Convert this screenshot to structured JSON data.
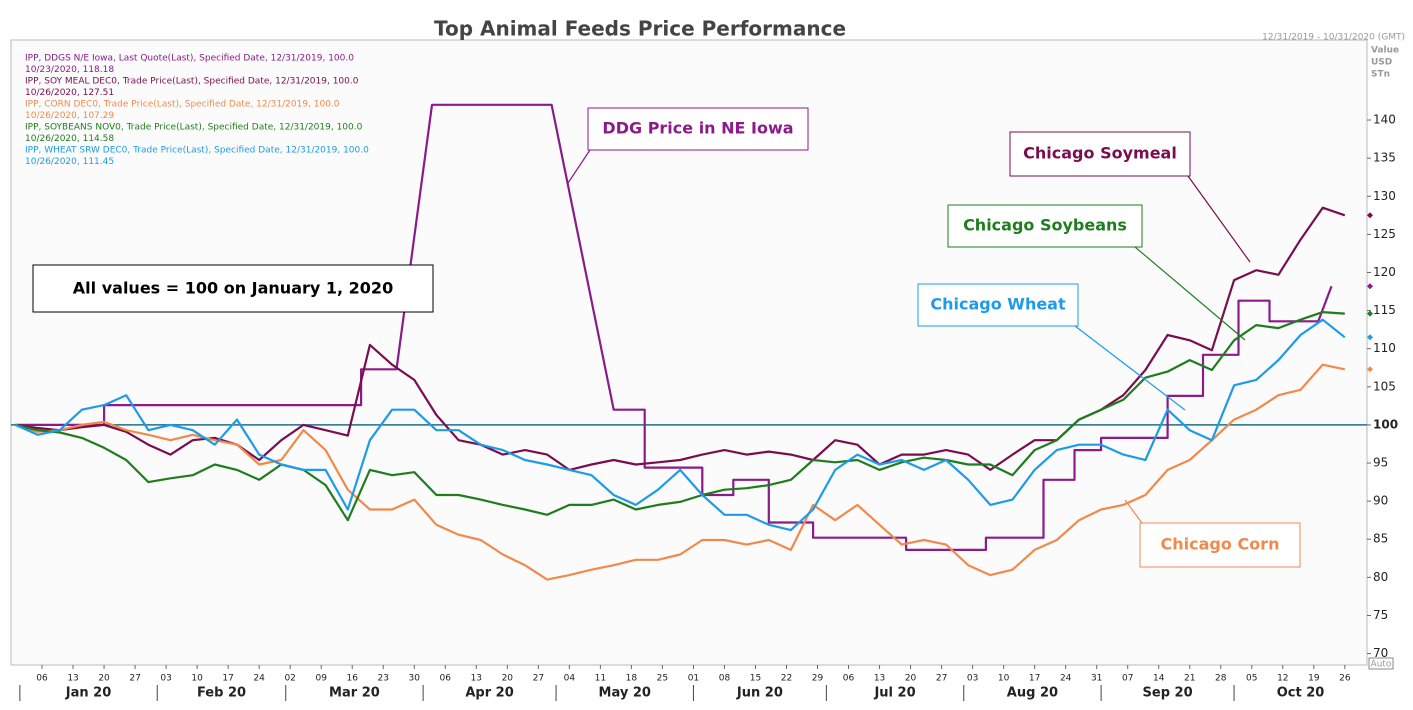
{
  "chart_data": {
    "type": "line",
    "title": "Top Animal Feeds Price Performance",
    "date_range": "12/31/2019 - 10/31/2020 (GMT)",
    "y_axis_label": [
      "Value",
      "USD",
      "STn"
    ],
    "note": "All values = 100 on January 1, 2020",
    "button": "Auto",
    "xlim": [
      -1,
      305
    ],
    "ylim": [
      68.5,
      150.5
    ],
    "yticks": [
      70,
      75,
      80,
      85,
      90,
      95,
      100,
      105,
      110,
      115,
      120,
      125,
      130,
      135,
      140
    ],
    "xticks": [
      {
        "value": 6,
        "label": "06"
      },
      {
        "value": 13,
        "label": "13"
      },
      {
        "value": 20,
        "label": "20"
      },
      {
        "value": 27,
        "label": "27"
      },
      {
        "value": 34,
        "label": "03"
      },
      {
        "value": 41,
        "label": "10"
      },
      {
        "value": 48,
        "label": "17"
      },
      {
        "value": 55,
        "label": "24"
      },
      {
        "value": 62,
        "label": "02"
      },
      {
        "value": 69,
        "label": "09"
      },
      {
        "value": 76,
        "label": "16"
      },
      {
        "value": 83,
        "label": "23"
      },
      {
        "value": 90,
        "label": "30"
      },
      {
        "value": 97,
        "label": "06"
      },
      {
        "value": 104,
        "label": "13"
      },
      {
        "value": 111,
        "label": "20"
      },
      {
        "value": 118,
        "label": "27"
      },
      {
        "value": 125,
        "label": "04"
      },
      {
        "value": 132,
        "label": "11"
      },
      {
        "value": 139,
        "label": "18"
      },
      {
        "value": 146,
        "label": "25"
      },
      {
        "value": 153,
        "label": "01"
      },
      {
        "value": 160,
        "label": "08"
      },
      {
        "value": 167,
        "label": "15"
      },
      {
        "value": 174,
        "label": "22"
      },
      {
        "value": 181,
        "label": "29"
      },
      {
        "value": 188,
        "label": "06"
      },
      {
        "value": 195,
        "label": "13"
      },
      {
        "value": 202,
        "label": "20"
      },
      {
        "value": 209,
        "label": "27"
      },
      {
        "value": 216,
        "label": "03"
      },
      {
        "value": 223,
        "label": "10"
      },
      {
        "value": 230,
        "label": "17"
      },
      {
        "value": 237,
        "label": "24"
      },
      {
        "value": 244,
        "label": "31"
      },
      {
        "value": 251,
        "label": "07"
      },
      {
        "value": 258,
        "label": "14"
      },
      {
        "value": 265,
        "label": "21"
      },
      {
        "value": 272,
        "label": "28"
      },
      {
        "value": 279,
        "label": "05"
      },
      {
        "value": 286,
        "label": "12"
      },
      {
        "value": 293,
        "label": "19"
      },
      {
        "value": 300,
        "label": "26"
      }
    ],
    "months": [
      {
        "value": 1,
        "label": "Jan 20"
      },
      {
        "value": 32,
        "label": "Feb 20"
      },
      {
        "value": 61,
        "label": "Mar 20"
      },
      {
        "value": 92,
        "label": "Apr 20"
      },
      {
        "value": 122,
        "label": "May 20"
      },
      {
        "value": 153,
        "label": "Jun 20"
      },
      {
        "value": 183,
        "label": "Jul 20"
      },
      {
        "value": 214,
        "label": "Aug 20"
      },
      {
        "value": 245,
        "label": "Sep 20"
      },
      {
        "value": 275,
        "label": "Oct 20"
      }
    ],
    "baseline": {
      "value": 100,
      "color": "#1f6f8b"
    },
    "x": [
      0,
      5,
      10,
      15,
      20,
      25,
      30,
      35,
      40,
      45,
      50,
      55,
      60,
      65,
      70,
      75,
      80,
      85,
      90,
      95,
      100,
      105,
      110,
      115,
      120,
      125,
      130,
      135,
      140,
      145,
      150,
      155,
      160,
      165,
      170,
      175,
      180,
      185,
      190,
      195,
      200,
      205,
      210,
      215,
      220,
      225,
      230,
      235,
      240,
      245,
      250,
      255,
      260,
      265,
      270,
      275,
      280,
      285,
      290,
      295,
      300
    ],
    "series": [
      {
        "name": "IPP, DDGS N/E Iowa, Last Quote(Last), Specified Date, 12/31/2019, 100.0",
        "last_quote": "10/23/2020, 118.18",
        "callout": "DDG Price in NE Iowa",
        "color": "#8b1a8b",
        "x": [
          0,
          20,
          20,
          78,
          78,
          86,
          94,
          121,
          135,
          142,
          142,
          155,
          155,
          162,
          162,
          170,
          170,
          180,
          180,
          201,
          201,
          219,
          219,
          232,
          232,
          239,
          239,
          245,
          245,
          260,
          260,
          268,
          268,
          276,
          276,
          283,
          283,
          294,
          297
        ],
        "values": [
          100,
          100,
          102.6,
          102.6,
          107.3,
          107.3,
          142,
          142,
          102,
          102,
          94.4,
          94.4,
          90.8,
          90.8,
          92.8,
          92.8,
          87.2,
          87.2,
          85.2,
          85.2,
          83.6,
          83.6,
          85.2,
          85.2,
          92.8,
          92.8,
          96.7,
          96.7,
          98.3,
          98.3,
          103.8,
          103.8,
          109.2,
          109.2,
          116.3,
          116.3,
          113.6,
          113.6,
          118.2
        ]
      },
      {
        "name": "IPP, SOY MEAL DEC0, Trade Price(Last), Specified Date, 12/31/2019, 100.0",
        "last_quote": "10/26/2020, 127.51",
        "callout": "Chicago Soymeal",
        "color": "#7a0d4f",
        "values": [
          100,
          99.6,
          99.3,
          99.7,
          100,
          99.1,
          97.4,
          96.1,
          98.0,
          98.3,
          97.4,
          95.4,
          98.0,
          100,
          99.3,
          98.6,
          110.5,
          107.9,
          105.9,
          101.3,
          98.0,
          97.4,
          96.1,
          96.7,
          96.1,
          94.1,
          94.8,
          95.4,
          94.8,
          95.1,
          95.4,
          96.1,
          96.7,
          96.1,
          96.5,
          96.1,
          95.4,
          98.0,
          97.4,
          94.8,
          96.1,
          96.1,
          96.7,
          96.1,
          94.1,
          96.1,
          98.0,
          98.0,
          100.7,
          102.0,
          103.9,
          107.2,
          111.8,
          111.1,
          109.8,
          119.0,
          120.3,
          119.7,
          124.3,
          128.5,
          127.5
        ]
      },
      {
        "name": "IPP, CORN DEC0, Trade Price(Last), Specified Date, 12/31/2019, 100.0",
        "last_quote": "10/26/2020, 107.29",
        "callout": "Chicago Corn",
        "color": "#f08a4b",
        "values": [
          100,
          99.1,
          99.3,
          100,
          100.4,
          99.3,
          98.7,
          98.0,
          98.7,
          98.0,
          97.4,
          94.8,
          95.4,
          99.3,
          96.7,
          91.5,
          88.9,
          88.9,
          90.2,
          86.9,
          85.6,
          84.9,
          83.0,
          81.6,
          79.7,
          80.3,
          81.0,
          81.6,
          82.3,
          82.3,
          83.0,
          84.9,
          84.9,
          84.3,
          84.9,
          83.6,
          89.5,
          87.5,
          89.5,
          86.9,
          84.3,
          84.9,
          84.3,
          81.6,
          80.3,
          81.0,
          83.6,
          84.9,
          87.5,
          88.9,
          89.5,
          90.8,
          94.1,
          95.4,
          98.0,
          100.7,
          102.0,
          103.9,
          104.6,
          107.9,
          107.3
        ]
      },
      {
        "name": "IPP, SOYBEANS NOV0, Trade Price(Last), Specified Date, 12/31/2019, 100.0",
        "last_quote": "10/26/2020, 114.58",
        "callout": "Chicago Soybeans",
        "color": "#1e7d1e",
        "values": [
          100,
          99.3,
          99.0,
          98.3,
          97.0,
          95.4,
          92.5,
          93.0,
          93.4,
          94.8,
          94.1,
          92.8,
          94.8,
          94.1,
          92.1,
          87.5,
          94.1,
          93.4,
          93.8,
          90.8,
          90.8,
          90.2,
          89.5,
          88.9,
          88.2,
          89.5,
          89.5,
          90.2,
          88.9,
          89.5,
          89.9,
          90.8,
          91.5,
          91.7,
          92.1,
          92.8,
          95.4,
          95.1,
          95.4,
          94.1,
          95.1,
          95.7,
          95.4,
          94.8,
          94.8,
          93.4,
          96.7,
          98.0,
          100.7,
          102.0,
          103.3,
          106.2,
          107.0,
          108.5,
          107.2,
          111.1,
          113.1,
          112.7,
          113.8,
          114.8,
          114.6
        ]
      },
      {
        "name": "IPP, WHEAT SRW DEC0, Trade Price(Last), Specified Date, 12/31/2019, 100.0",
        "last_quote": "10/26/2020, 111.45",
        "callout": "Chicago Wheat",
        "color": "#1e9be8",
        "values": [
          100,
          98.7,
          99.3,
          102.0,
          102.6,
          103.9,
          99.3,
          100,
          99.3,
          97.4,
          100.7,
          96.1,
          94.8,
          94.1,
          94.1,
          88.9,
          98.0,
          102.0,
          102.0,
          99.3,
          99.3,
          97.4,
          96.7,
          95.4,
          94.8,
          94.1,
          93.4,
          90.8,
          89.5,
          91.5,
          94.1,
          90.8,
          88.2,
          88.2,
          86.9,
          86.2,
          88.9,
          94.1,
          96.1,
          94.8,
          95.4,
          94.1,
          95.4,
          92.8,
          89.5,
          90.2,
          94.1,
          96.7,
          97.4,
          97.4,
          96.1,
          95.4,
          102.0,
          99.3,
          98.0,
          105.2,
          105.9,
          108.5,
          111.8,
          113.8,
          111.5
        ]
      }
    ]
  }
}
